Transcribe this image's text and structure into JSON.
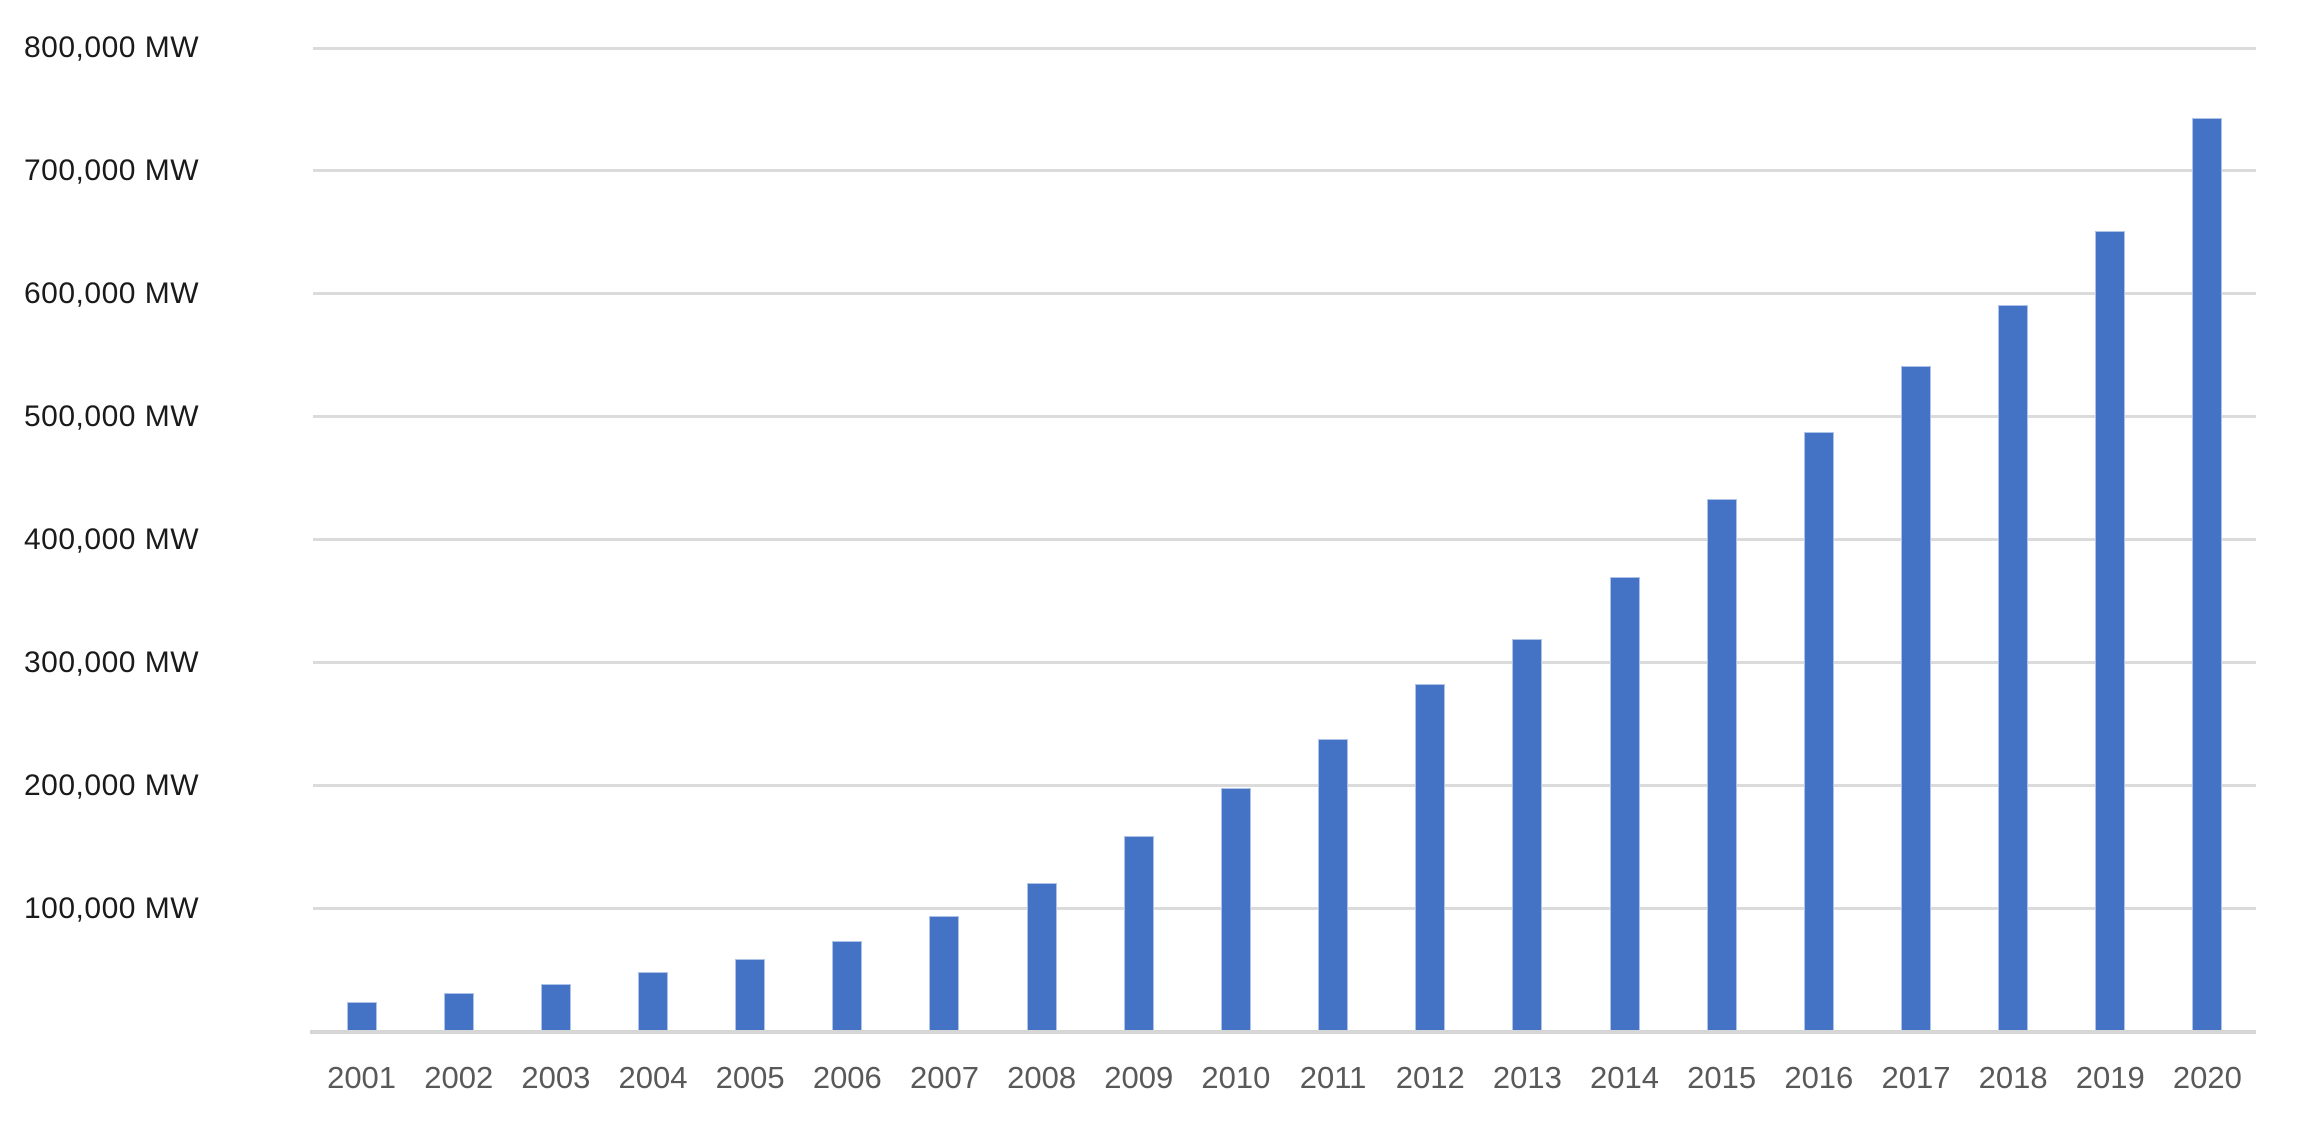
{
  "chart_data": {
    "type": "bar",
    "title": "",
    "xlabel": "",
    "ylabel": "",
    "unit": "MW",
    "categories": [
      "2001",
      "2002",
      "2003",
      "2004",
      "2005",
      "2006",
      "2007",
      "2008",
      "2009",
      "2010",
      "2011",
      "2012",
      "2013",
      "2014",
      "2015",
      "2016",
      "2017",
      "2018",
      "2019",
      "2020"
    ],
    "values": [
      24000,
      31000,
      39000,
      48000,
      59000,
      74000,
      94000,
      121000,
      159000,
      198000,
      238000,
      283000,
      319000,
      370000,
      433000,
      488000,
      541000,
      591000,
      651000,
      743000
    ],
    "ylim": [
      0,
      800000
    ],
    "ytick_step": 100000,
    "yticks": [
      {
        "value": 800000,
        "label": "800,000 MW"
      },
      {
        "value": 700000,
        "label": "700,000 MW"
      },
      {
        "value": 600000,
        "label": "600,000 MW"
      },
      {
        "value": 500000,
        "label": "500,000 MW"
      },
      {
        "value": 400000,
        "label": "400,000 MW"
      },
      {
        "value": 300000,
        "label": "300,000 MW"
      },
      {
        "value": 200000,
        "label": "200,000 MW"
      },
      {
        "value": 100000,
        "label": "100,000 MW"
      }
    ],
    "grid": true,
    "legend_position": "none",
    "colors": {
      "bar_fill": "#4472C4",
      "bar_edge": "#AFC3E8",
      "gridline": "#DBDBDB",
      "axis_line": "#D6D6D6",
      "ytick_label": "#1A1A1A",
      "xtick_label": "#595959",
      "background": "#FFFFFF"
    }
  }
}
